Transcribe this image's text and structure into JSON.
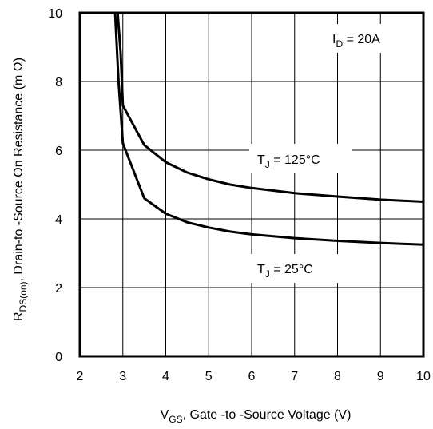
{
  "chart_data": {
    "type": "line",
    "xlim": [
      2,
      10
    ],
    "ylim": [
      0,
      10
    ],
    "x_ticks": [
      "2",
      "3",
      "4",
      "5",
      "6",
      "7",
      "8",
      "9",
      "10"
    ],
    "y_ticks": [
      "0",
      "2",
      "4",
      "6",
      "8",
      "10"
    ],
    "grid": true,
    "xlabel": {
      "main": "V",
      "sub": "GS",
      "rest": ", Gate -to -Source Voltage  (V)"
    },
    "ylabel": {
      "main": "R",
      "sub": "DS(on)",
      "rest": ",  Drain-to -Source On Resistance (m Ω)"
    },
    "annotation": {
      "main": "I",
      "sub": "D",
      "rest": " = 20A"
    },
    "series": [
      {
        "label": {
          "main": "T",
          "sub": "J",
          "rest": " = 125°C"
        },
        "x": [
          2.88,
          2.95,
          3.0,
          3.5,
          4.0,
          4.5,
          5.0,
          5.5,
          6.0,
          7.0,
          8.0,
          9.0,
          10.0
        ],
        "y": [
          10.0,
          8.8,
          7.3,
          6.15,
          5.65,
          5.35,
          5.15,
          5.0,
          4.9,
          4.75,
          4.65,
          4.56,
          4.5
        ]
      },
      {
        "label": {
          "main": "T",
          "sub": "J",
          "rest": " = 25°C"
        },
        "x": [
          2.82,
          2.9,
          3.0,
          3.5,
          4.0,
          4.5,
          5.0,
          5.5,
          6.0,
          7.0,
          8.0,
          9.0,
          10.0
        ],
        "y": [
          10.0,
          8.0,
          6.2,
          4.6,
          4.15,
          3.9,
          3.75,
          3.63,
          3.55,
          3.44,
          3.36,
          3.3,
          3.25
        ]
      }
    ]
  }
}
